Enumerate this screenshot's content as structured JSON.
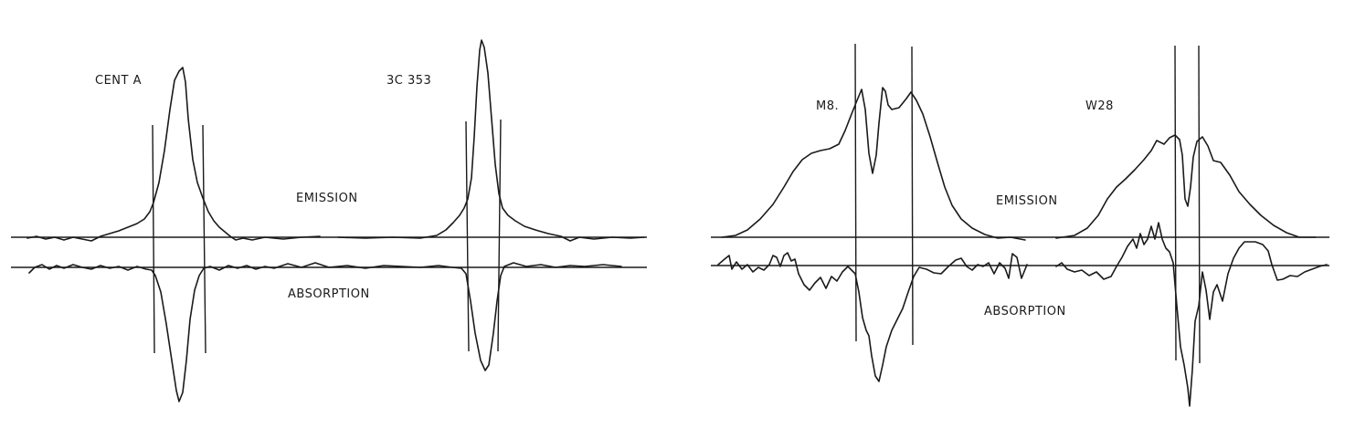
{
  "panels": [
    {
      "id": "left",
      "emission_label": "EMISSION",
      "absorption_label": "ABSORPTION",
      "sources": [
        {
          "name": "CENT A"
        },
        {
          "name": "3C 353"
        }
      ]
    },
    {
      "id": "right",
      "emission_label": "EMISSION",
      "absorption_label": "ABSORPTION",
      "sources": [
        {
          "name": "M8."
        },
        {
          "name": "W28"
        }
      ]
    }
  ]
}
